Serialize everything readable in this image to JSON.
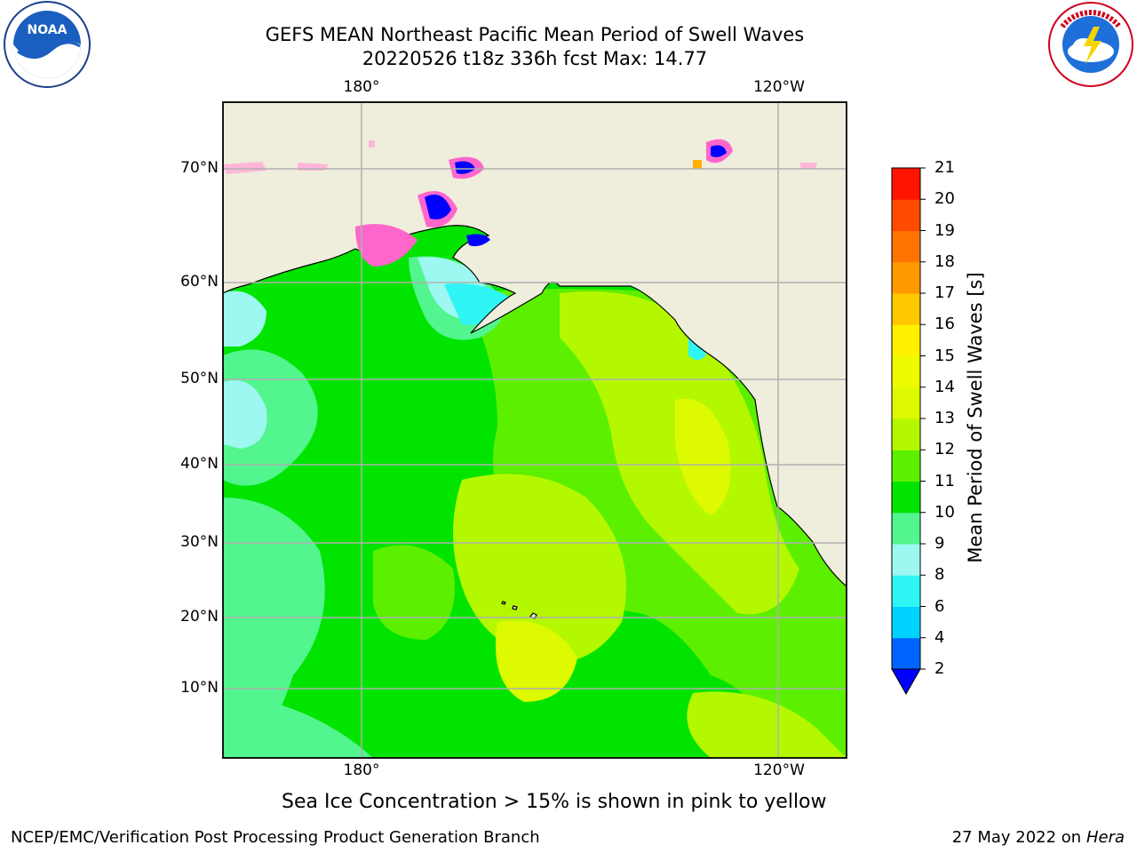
{
  "header": {
    "title_line1": "GEFS MEAN Northeast Pacific Mean Period of Swell Waves",
    "title_line2": "20220526 t18z 336h fcst   Max: 14.77"
  },
  "logos": {
    "left": {
      "icon": "noaa-logo",
      "text": "NOAA"
    },
    "right": {
      "icon": "nws-logo"
    }
  },
  "map": {
    "lat_labels": [
      "70°N",
      "60°N",
      "50°N",
      "40°N",
      "30°N",
      "20°N",
      "10°N"
    ],
    "lon_labels_top": [
      "180°",
      "120°W"
    ],
    "lon_labels_bottom": [
      "180°",
      "120°W"
    ],
    "land_color": "#efeddc",
    "grid_color": "#b0b0b0"
  },
  "colorbar": {
    "label": "Mean Period of Swell Waves [s]",
    "ticks": [
      "2",
      "4",
      "6",
      "8",
      "9",
      "10",
      "11",
      "12",
      "13",
      "14",
      "15",
      "16",
      "17",
      "18",
      "19",
      "20",
      "21"
    ],
    "colors": [
      "#0064ff",
      "#00d2ff",
      "#30f5f5",
      "#9cf8f0",
      "#52f58e",
      "#00e400",
      "#5cf000",
      "#b4f800",
      "#ddfa00",
      "#eefb00",
      "#fff200",
      "#ffc800",
      "#ff9900",
      "#ff7300",
      "#ff4b00",
      "#ff1400"
    ],
    "under_color": "#0000ff"
  },
  "footer": {
    "note": "Sea Ice Concentration > 15% is shown in pink to yellow",
    "credit": "NCEP/EMC/Verification Post Processing Product Generation Branch",
    "date": "27 May 2022 on",
    "host": "Hera"
  }
}
